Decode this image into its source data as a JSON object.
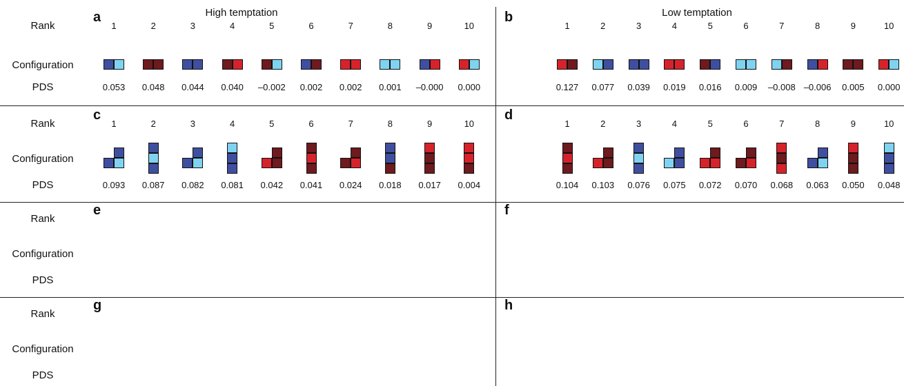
{
  "titles": {
    "high": "High temptation",
    "low": "Low temptation"
  },
  "row_labels": {
    "rank": "Rank",
    "configuration": "Configuration",
    "pds": "PDS"
  },
  "colors": {
    "D": "#3f4fa0",
    "L": "#7fd3f0",
    "M": "#6e1a1e",
    "R": "#d6232b"
  },
  "color_legend": {
    "D": "dark-blue",
    "L": "light-blue",
    "M": "maroon",
    "R": "red"
  },
  "panels": [
    {
      "letter": "a",
      "side": "left",
      "band": 0,
      "ranks": [
        "1",
        "2",
        "3",
        "4",
        "5",
        "6",
        "7",
        "8",
        "9",
        "10"
      ],
      "pds": [
        "0.053",
        "0.048",
        "0.044",
        "0.040",
        "–0.002",
        "0.002",
        "0.002",
        "0.001",
        "–0.000",
        "0.000"
      ],
      "configs": [
        "DL",
        "MM",
        "DD",
        "MR",
        "ML",
        "DM",
        "RR",
        "LL",
        "DR",
        "RL"
      ]
    },
    {
      "letter": "b",
      "side": "right",
      "band": 0,
      "ranks": [
        "1",
        "2",
        "3",
        "4",
        "5",
        "6",
        "7",
        "8",
        "9",
        "10"
      ],
      "pds": [
        "0.127",
        "0.077",
        "0.039",
        "0.019",
        "0.016",
        "0.009",
        "–0.008",
        "–0.006",
        "0.005",
        "0.000"
      ],
      "configs": [
        "RM",
        "LD",
        "DD",
        "RR",
        "MD",
        "LL",
        "LM",
        "DR",
        "MM",
        "RL"
      ]
    },
    {
      "letter": "c",
      "side": "left",
      "band": 1,
      "ranks": [
        "1",
        "2",
        "3",
        "4",
        "5",
        "6",
        "7",
        "8",
        "9",
        "10"
      ],
      "pds": [
        "0.093",
        "0.087",
        "0.082",
        "0.081",
        "0.042",
        "0.041",
        "0.024",
        "0.018",
        "0.017",
        "0.004"
      ],
      "configs": [
        "corner:DDL",
        "vert:DLD",
        "corner:DDL",
        "vert:LDD",
        "corner:MRM",
        "vert:MRM",
        "corner:MMR",
        "vert:DDM",
        "vert:RMM",
        "vert:RRM"
      ]
    },
    {
      "letter": "d",
      "side": "right",
      "band": 1,
      "ranks": [
        "1",
        "2",
        "3",
        "4",
        "5",
        "6",
        "7",
        "8",
        "9",
        "10"
      ],
      "pds": [
        "0.104",
        "0.103",
        "0.076",
        "0.075",
        "0.072",
        "0.070",
        "0.068",
        "0.063",
        "0.050",
        "0.048"
      ],
      "configs": [
        "vert:MRM",
        "corner:MRM",
        "vert:DLD",
        "corner:DLD",
        "corner:MRR",
        "corner:MMR",
        "vert:RMR",
        "corner:DDL",
        "vert:RMM",
        "vert:LDD"
      ]
    }
  ]
}
